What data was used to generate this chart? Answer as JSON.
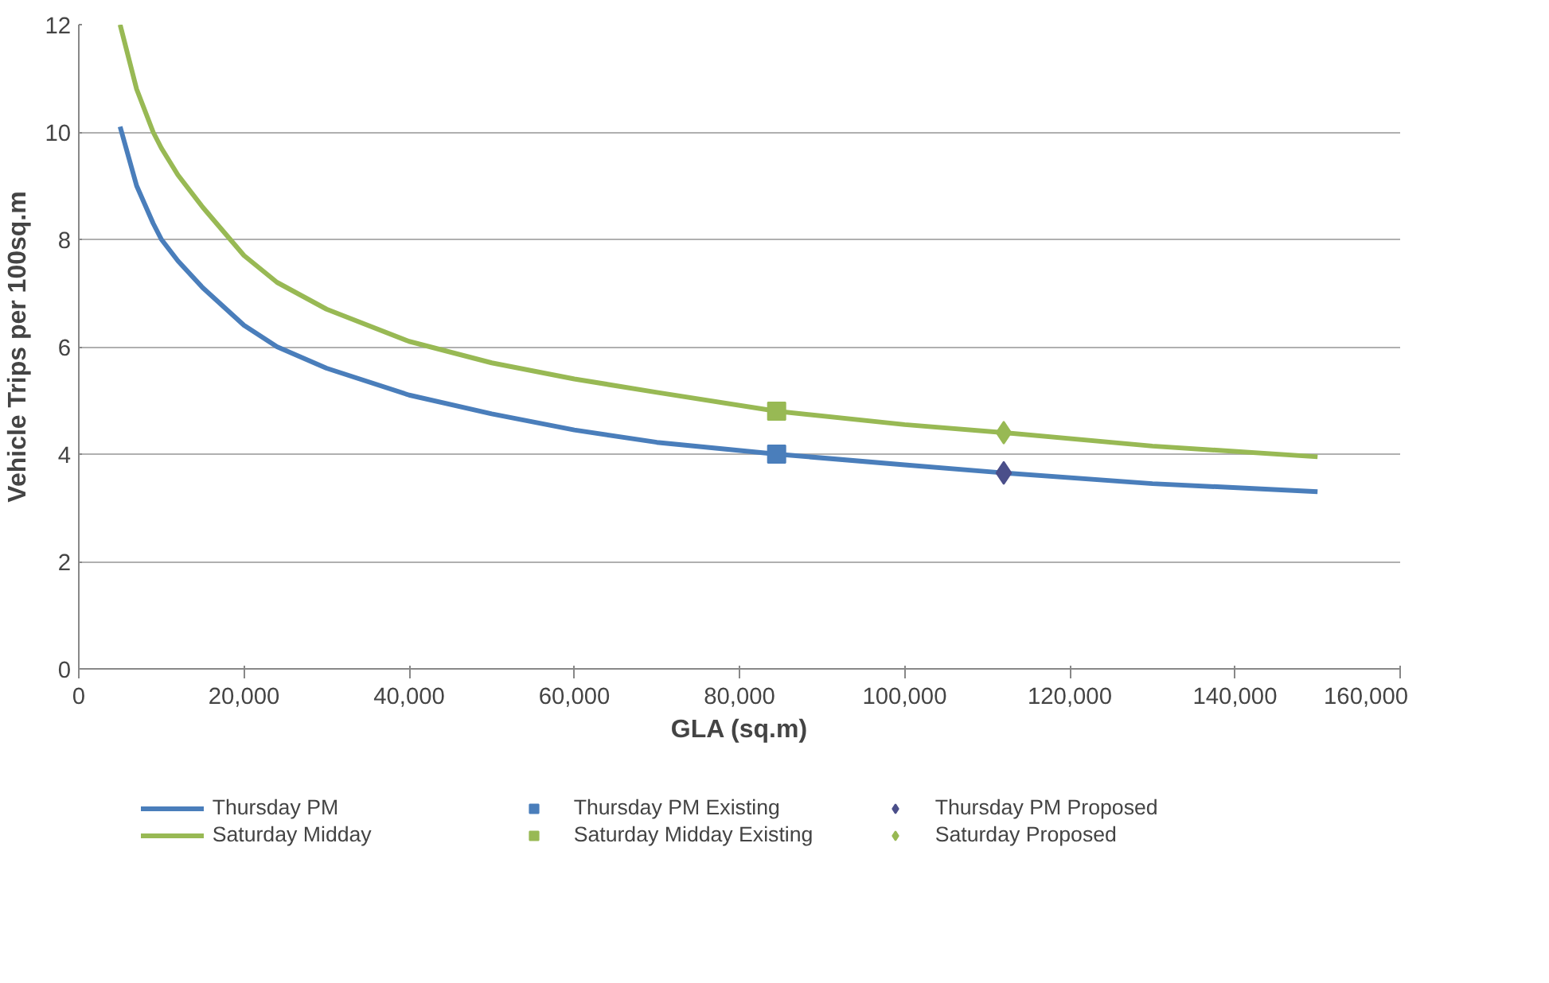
{
  "chart_data": {
    "type": "line",
    "xlabel": "GLA (sq.m)",
    "ylabel": "Vehicle Trips per 100sq.m",
    "xlim": [
      0,
      160000
    ],
    "xticks": [
      {
        "value": 0,
        "label": "0"
      },
      {
        "value": 20000,
        "label": "20,000"
      },
      {
        "value": 40000,
        "label": "40,000"
      },
      {
        "value": 60000,
        "label": "60,000"
      },
      {
        "value": 80000,
        "label": "80,000"
      },
      {
        "value": 100000,
        "label": "100,000"
      },
      {
        "value": 120000,
        "label": "120,000"
      },
      {
        "value": 140000,
        "label": "140,000"
      },
      {
        "value": 160000,
        "label": "160,000"
      }
    ],
    "ylim": [
      0,
      12
    ],
    "yticks": [
      0,
      2,
      4,
      6,
      8,
      10,
      12
    ],
    "grid": "y",
    "legend": "bottom",
    "series": [
      {
        "name": "Thursday PM",
        "color": "#4a7ebb",
        "marker": "none",
        "x": [
          5000,
          7000,
          9000,
          10000,
          12000,
          15000,
          20000,
          24000,
          30000,
          40000,
          50000,
          60000,
          70000,
          84500,
          100000,
          112000,
          130000,
          150000
        ],
        "values": [
          10.1,
          9.0,
          8.3,
          8.0,
          7.6,
          7.1,
          6.4,
          6.0,
          5.6,
          5.1,
          4.75,
          4.45,
          4.22,
          4.0,
          3.8,
          3.65,
          3.45,
          3.3
        ]
      },
      {
        "name": "Thursday PM Existing",
        "type": "scatter",
        "color": "#4a7ebb",
        "marker": "square",
        "x": [
          84500
        ],
        "values": [
          4.0
        ]
      },
      {
        "name": "Thursday PM Proposed",
        "type": "scatter",
        "color": "#4b4f8a",
        "marker": "diamond",
        "x": [
          112000
        ],
        "values": [
          3.65
        ]
      },
      {
        "name": "Saturday Midday",
        "color": "#98b954",
        "marker": "none",
        "x": [
          5000,
          7000,
          9000,
          10000,
          12000,
          15000,
          20000,
          24000,
          30000,
          40000,
          50000,
          60000,
          70000,
          84500,
          100000,
          112000,
          130000,
          150000
        ],
        "values": [
          12.0,
          10.8,
          10.0,
          9.7,
          9.2,
          8.6,
          7.7,
          7.2,
          6.7,
          6.1,
          5.7,
          5.4,
          5.15,
          4.8,
          4.55,
          4.4,
          4.15,
          3.95
        ]
      },
      {
        "name": "Saturday Midday Existing",
        "type": "scatter",
        "color": "#98b954",
        "marker": "square",
        "x": [
          84500
        ],
        "values": [
          4.8
        ]
      },
      {
        "name": "Saturday Proposed",
        "type": "scatter",
        "color": "#98b954",
        "marker": "diamond",
        "x": [
          112000
        ],
        "values": [
          4.4
        ]
      }
    ]
  }
}
